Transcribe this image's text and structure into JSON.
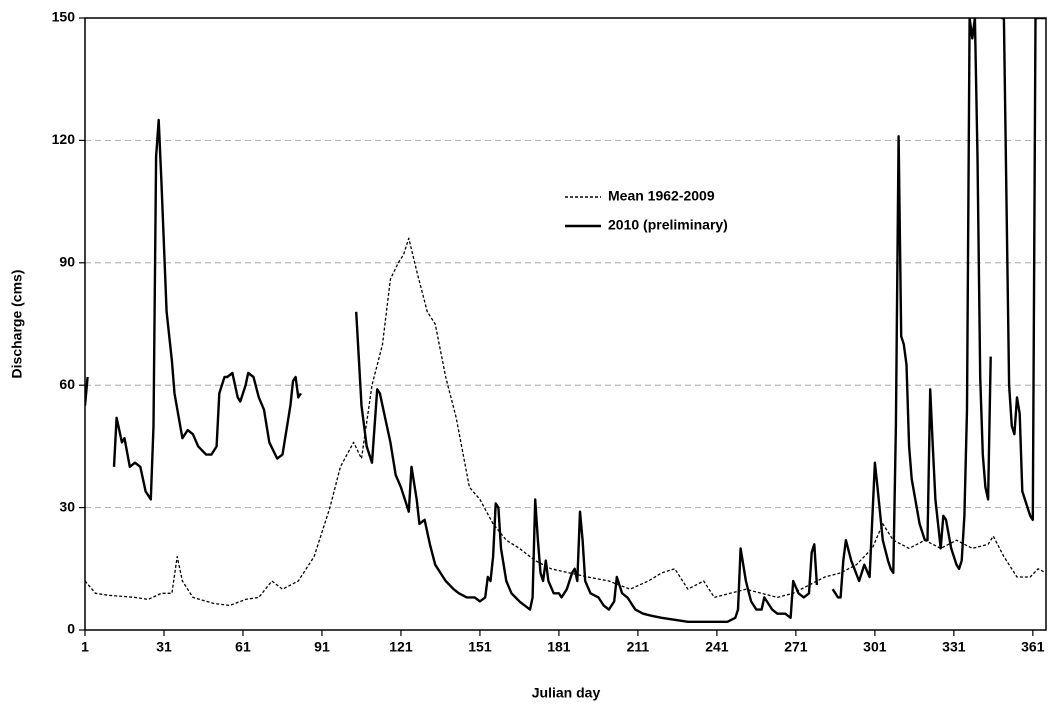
{
  "chart_data": {
    "type": "line",
    "xlabel": "Julian day",
    "ylabel": "Discharge (cms)",
    "xlim": [
      1,
      366
    ],
    "ylim": [
      0,
      150
    ],
    "xticks": [
      1,
      31,
      61,
      91,
      121,
      151,
      181,
      211,
      241,
      271,
      301,
      331,
      361
    ],
    "yticks": [
      0,
      30,
      60,
      90,
      120,
      150
    ],
    "grid": true,
    "legend": "upper center",
    "series": [
      {
        "name": "Mean 1962-2009",
        "color": "#000000",
        "style": "dotted",
        "x": [
          1,
          5,
          10,
          20,
          25,
          30,
          34,
          36,
          38,
          42,
          50,
          56,
          62,
          67,
          72,
          76,
          82,
          88,
          94,
          98,
          103,
          106,
          110,
          114,
          117,
          120,
          122,
          124,
          127,
          131,
          134,
          138,
          142,
          147,
          151,
          156,
          161,
          166,
          172,
          178,
          185,
          192,
          200,
          208,
          215,
          220,
          225,
          230,
          236,
          240,
          246,
          252,
          258,
          264,
          270,
          276,
          282,
          288,
          294,
          300,
          304,
          308,
          314,
          320,
          326,
          332,
          338,
          344,
          346,
          350,
          355,
          360,
          363,
          366
        ],
        "values": [
          12,
          9,
          8.5,
          8,
          7.5,
          9,
          9,
          18,
          12,
          8,
          6.5,
          6,
          7.5,
          8,
          12,
          10,
          12,
          18,
          30,
          40,
          46,
          42,
          60,
          70,
          86,
          90,
          92,
          96,
          88,
          78,
          75,
          62,
          52,
          35,
          32,
          26,
          22,
          20,
          17,
          15,
          14,
          13,
          12,
          10,
          12,
          14,
          15,
          10,
          12,
          8,
          9,
          10,
          9,
          8,
          9,
          11,
          13,
          14,
          16,
          20,
          26,
          22,
          20,
          22,
          20,
          22,
          20,
          21,
          23,
          18,
          13,
          13,
          15,
          14
        ]
      },
      {
        "name": "2010 (preliminary)",
        "color": "#000000",
        "style": "solid",
        "x": [
          1,
          2,
          3,
          12,
          13,
          15,
          16,
          18,
          20,
          22,
          24,
          26,
          27,
          28,
          29,
          30,
          32,
          34,
          35,
          38,
          40,
          42,
          44,
          47,
          49,
          51,
          52,
          54,
          55,
          57,
          59,
          60,
          62,
          63,
          65,
          67,
          69,
          71,
          74,
          76,
          79,
          80,
          81,
          82,
          83,
          90,
          104,
          106,
          108,
          110,
          112,
          113,
          115,
          117,
          119,
          121,
          123,
          124,
          125,
          127,
          128,
          130,
          132,
          134,
          137,
          138,
          141,
          143,
          146,
          149,
          151,
          153,
          154,
          155,
          156,
          157,
          158,
          159,
          161,
          163,
          166,
          170,
          171,
          172,
          173,
          174,
          175,
          176,
          177,
          179,
          181,
          182,
          184,
          186,
          187,
          188,
          189,
          190,
          191,
          193,
          196,
          198,
          200,
          202,
          203,
          205,
          207,
          210,
          213,
          216,
          220,
          225,
          230,
          240,
          245,
          248,
          249,
          250,
          252,
          254,
          256,
          258,
          259,
          260,
          262,
          264,
          267,
          269,
          270,
          272,
          274,
          276,
          277,
          278,
          279,
          282,
          285,
          287,
          288,
          289,
          290,
          292,
          295,
          297,
          299,
          301,
          302,
          304,
          306,
          307,
          308,
          309,
          310,
          311,
          312,
          313,
          314,
          315,
          318,
          320,
          321,
          322,
          323,
          324,
          326,
          327,
          328,
          330,
          332,
          333,
          334,
          335,
          336,
          337,
          338,
          339,
          340,
          341,
          342,
          343,
          344,
          345,
          347,
          349,
          350,
          351,
          352,
          353,
          354,
          355,
          356,
          357,
          358,
          360,
          361,
          362,
          366
        ],
        "values": [
          55,
          62,
          null,
          40,
          52,
          46,
          47,
          40,
          41,
          40,
          34,
          32,
          50,
          116,
          125,
          110,
          78,
          66,
          58,
          47,
          49,
          48,
          45,
          43,
          43,
          45,
          58,
          62,
          62,
          63,
          57,
          56,
          60,
          63,
          62,
          57,
          54,
          46,
          42,
          43,
          55,
          61,
          62,
          57,
          58,
          null,
          78,
          55,
          45,
          41,
          59,
          58,
          52,
          46,
          38,
          35,
          31,
          29,
          40,
          32,
          26,
          27,
          21,
          16,
          13,
          12,
          10,
          9,
          8,
          8,
          7,
          8,
          13,
          12,
          18,
          31,
          30,
          20,
          12,
          9,
          7,
          5,
          8,
          32,
          22,
          14,
          12,
          17,
          12,
          9,
          9,
          8,
          10,
          14,
          15,
          12,
          29,
          22,
          12,
          9,
          8,
          6,
          5,
          7,
          13,
          9,
          8,
          5,
          4,
          3.5,
          3,
          2.5,
          2,
          2,
          2,
          3,
          5,
          20,
          12,
          7,
          5,
          5,
          8,
          7,
          5,
          4,
          4,
          3,
          12,
          9,
          8,
          9,
          19,
          21,
          11,
          null,
          10,
          8,
          8,
          17,
          22,
          17,
          12,
          16,
          13,
          41,
          35,
          22,
          17,
          15,
          14,
          50,
          121,
          72,
          70,
          65,
          45,
          37,
          26,
          22,
          22,
          59,
          45,
          32,
          20,
          28,
          27,
          20,
          16,
          15,
          17,
          28,
          54,
          150,
          145,
          150,
          116,
          62,
          43,
          35,
          32,
          67,
          null,
          150,
          150,
          105,
          60,
          50,
          48,
          57,
          53,
          34,
          32,
          28,
          27,
          150,
          150
        ]
      }
    ]
  }
}
